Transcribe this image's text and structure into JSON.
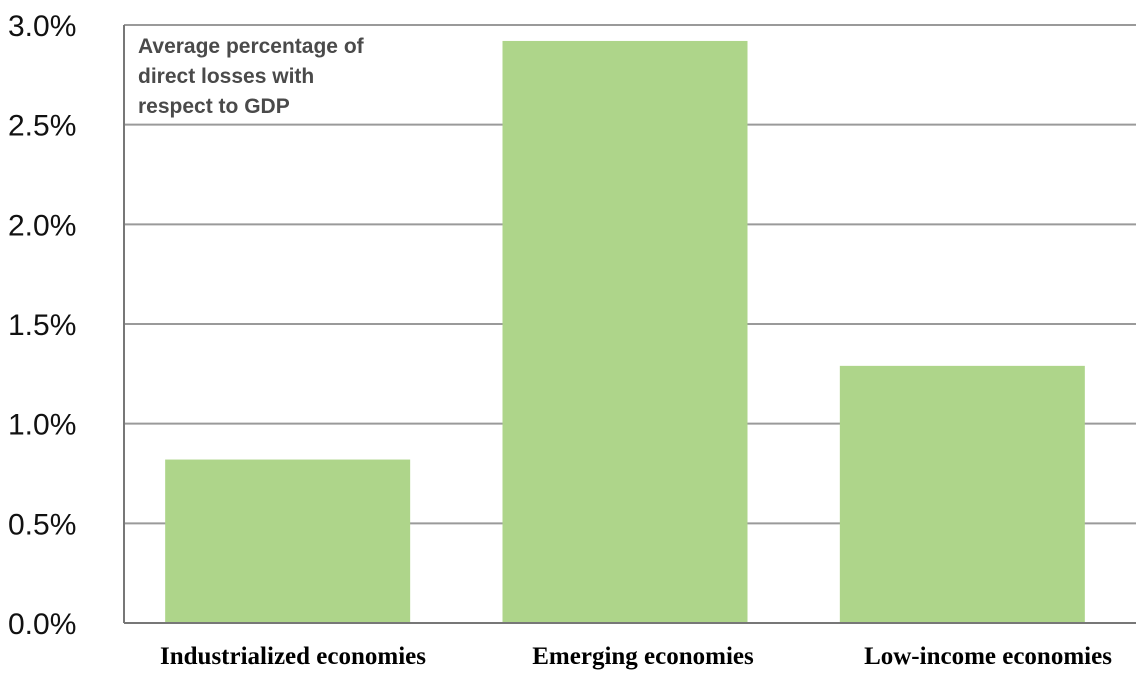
{
  "chart_data": {
    "type": "bar",
    "categories": [
      "Industrialized economies",
      "Emerging economies",
      "Low-income economies"
    ],
    "values": [
      0.82,
      2.92,
      1.29
    ],
    "title": "",
    "xlabel": "",
    "ylabel": "",
    "ylim": [
      0,
      3.0
    ],
    "y_ticks": [
      "0.0%",
      "0.5%",
      "1.0%",
      "1.5%",
      "2.0%",
      "2.5%",
      "3.0%"
    ],
    "y_unit": "%",
    "grid": true,
    "legend": "none",
    "annotation": [
      "Average percentage of",
      "direct losses with",
      "respect to GDP"
    ],
    "colors": {
      "bar": "#aed58a",
      "grid": "#9a9a9a",
      "axis": "#777777"
    }
  }
}
